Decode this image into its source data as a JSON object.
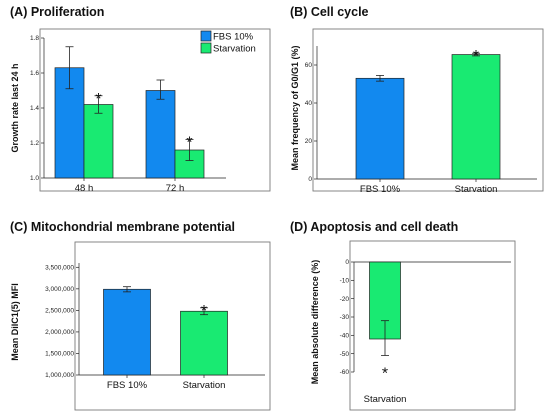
{
  "colors": {
    "fbs": "#1289ef",
    "starvation": "#19ea72"
  },
  "chart_data": [
    {
      "type": "bar",
      "title": "(A) Proliferation",
      "ylabel": "Growth rate last 24 h",
      "xlabel": "",
      "ylim": [
        1.0,
        1.8
      ],
      "yticks": [
        "1.0",
        "1.2",
        "1.4",
        "1.6",
        "1.8"
      ],
      "ytick_values": [
        1.0,
        1.2,
        1.4,
        1.6,
        1.8
      ],
      "categories": [
        "48 h",
        "72 h"
      ],
      "legend": "top-right",
      "grid": false,
      "series": [
        {
          "name": "FBS 10%",
          "color_key": "fbs",
          "values": [
            1.63,
            1.5
          ],
          "err_low": [
            1.51,
            1.45
          ],
          "err_high": [
            1.75,
            1.56
          ],
          "sig": [
            false,
            false
          ]
        },
        {
          "name": "Starvation",
          "color_key": "starvation",
          "values": [
            1.42,
            1.16
          ],
          "err_low": [
            1.37,
            1.1
          ],
          "err_high": [
            1.47,
            1.22
          ],
          "sig": [
            true,
            true
          ]
        }
      ],
      "significance_marker": "*"
    },
    {
      "type": "bar",
      "title": "(B) Cell cycle",
      "ylabel": "Mean frequency of G0/G1 (%)",
      "xlabel": "",
      "ylim": [
        0,
        70
      ],
      "yticks": [
        "0",
        "20",
        "40",
        "60"
      ],
      "ytick_values": [
        0,
        20,
        40,
        60
      ],
      "categories": [
        "FBS 10%",
        "Starvation"
      ],
      "grid": false,
      "series": [
        {
          "name": "",
          "color_keys": [
            "fbs",
            "starvation"
          ],
          "values": [
            53.0,
            65.5
          ],
          "err_low": [
            51.5,
            64.8
          ],
          "err_high": [
            54.5,
            66.2
          ],
          "sig": [
            false,
            true
          ]
        }
      ],
      "significance_marker": "*"
    },
    {
      "type": "bar",
      "title": "(C) Mitochondrial membrane potential",
      "ylabel": "Mean DiIC1(5) MFI",
      "xlabel": "",
      "ylim": [
        1000000,
        3600000
      ],
      "yticks": [
        "1,000,000",
        "1,500,000",
        "2,000,000",
        "2,500,000",
        "3,000,000",
        "3,500,000"
      ],
      "ytick_values": [
        1000000,
        1500000,
        2000000,
        2500000,
        3000000,
        3500000
      ],
      "categories": [
        "FBS 10%",
        "Starvation"
      ],
      "grid": false,
      "series": [
        {
          "name": "",
          "color_keys": [
            "fbs",
            "starvation"
          ],
          "values": [
            2990000,
            2480000
          ],
          "err_low": [
            2930000,
            2400000
          ],
          "err_high": [
            3050000,
            2560000
          ],
          "sig": [
            false,
            true
          ]
        }
      ],
      "significance_marker": "*"
    },
    {
      "type": "bar",
      "title": "(D) Apoptosis and cell death",
      "ylabel": "Mean absolute difference (%)",
      "xlabel": "",
      "ylim": [
        -60,
        0
      ],
      "yticks": [
        "0",
        "-10",
        "-20",
        "-30",
        "-40",
        "-50",
        "-60"
      ],
      "ytick_values": [
        0,
        -10,
        -20,
        -30,
        -40,
        -50,
        -60
      ],
      "categories": [
        "Starvation"
      ],
      "grid": false,
      "series": [
        {
          "name": "",
          "color_keys": [
            "starvation"
          ],
          "values": [
            -42
          ],
          "err_low": [
            -51
          ],
          "err_high": [
            -32
          ],
          "sig": [
            true
          ]
        }
      ],
      "significance_marker": "*"
    }
  ]
}
